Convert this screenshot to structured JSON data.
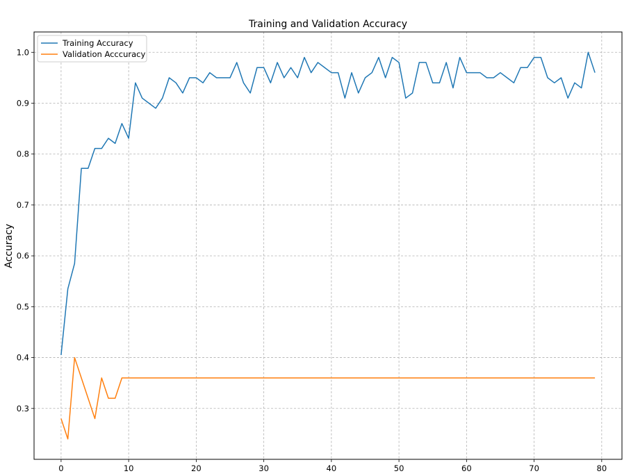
{
  "chart_data": {
    "type": "line",
    "title": "Training and Validation Accuracy",
    "xlabel": "",
    "ylabel": "Accuracy",
    "xlim": [
      -4,
      83
    ],
    "ylim": [
      0.2,
      1.04
    ],
    "xticks": [
      0,
      10,
      20,
      30,
      40,
      50,
      60,
      70,
      80
    ],
    "yticks": [
      0.3,
      0.4,
      0.5,
      0.6,
      0.7,
      0.8,
      0.9,
      1.0
    ],
    "xtick_labels": [
      "0",
      "10",
      "20",
      "30",
      "40",
      "50",
      "60",
      "70",
      "80"
    ],
    "ytick_labels": [
      "0.3",
      "0.4",
      "0.5",
      "0.6",
      "0.7",
      "0.8",
      "0.9",
      "1.0"
    ],
    "grid": true,
    "grid_style": "dashed",
    "legend_position": "top-left",
    "series": [
      {
        "name": "Training Accuracy",
        "color": "#1f77b4",
        "values": [
          0.405,
          0.535,
          0.585,
          0.772,
          0.772,
          0.811,
          0.811,
          0.831,
          0.821,
          0.86,
          0.831,
          0.94,
          0.91,
          0.9,
          0.89,
          0.91,
          0.95,
          0.94,
          0.92,
          0.95,
          0.95,
          0.94,
          0.96,
          0.95,
          0.95,
          0.95,
          0.98,
          0.94,
          0.92,
          0.97,
          0.97,
          0.94,
          0.98,
          0.95,
          0.97,
          0.95,
          0.99,
          0.96,
          0.98,
          0.97,
          0.96,
          0.96,
          0.91,
          0.96,
          0.92,
          0.95,
          0.96,
          0.99,
          0.95,
          0.99,
          0.98,
          0.91,
          0.92,
          0.98,
          0.98,
          0.94,
          0.94,
          0.98,
          0.93,
          0.99,
          0.96,
          0.96,
          0.96,
          0.95,
          0.95,
          0.96,
          0.95,
          0.94,
          0.97,
          0.97,
          0.99,
          0.99,
          0.95,
          0.94,
          0.95,
          0.91,
          0.94,
          0.93,
          1.0,
          0.96
        ]
      },
      {
        "name": "Validation Acccuracy",
        "color": "#ff7f0e",
        "values": [
          0.28,
          0.24,
          0.4,
          0.36,
          0.32,
          0.28,
          0.36,
          0.32,
          0.32,
          0.36,
          0.36,
          0.36,
          0.36,
          0.36,
          0.36,
          0.36,
          0.36,
          0.36,
          0.36,
          0.36,
          0.36,
          0.36,
          0.36,
          0.36,
          0.36,
          0.36,
          0.36,
          0.36,
          0.36,
          0.36,
          0.36,
          0.36,
          0.36,
          0.36,
          0.36,
          0.36,
          0.36,
          0.36,
          0.36,
          0.36,
          0.36,
          0.36,
          0.36,
          0.36,
          0.36,
          0.36,
          0.36,
          0.36,
          0.36,
          0.36,
          0.36,
          0.36,
          0.36,
          0.36,
          0.36,
          0.36,
          0.36,
          0.36,
          0.36,
          0.36,
          0.36,
          0.36,
          0.36,
          0.36,
          0.36,
          0.36,
          0.36,
          0.36,
          0.36,
          0.36,
          0.36,
          0.36,
          0.36,
          0.36,
          0.36,
          0.36,
          0.36,
          0.36,
          0.36,
          0.36
        ]
      }
    ]
  }
}
